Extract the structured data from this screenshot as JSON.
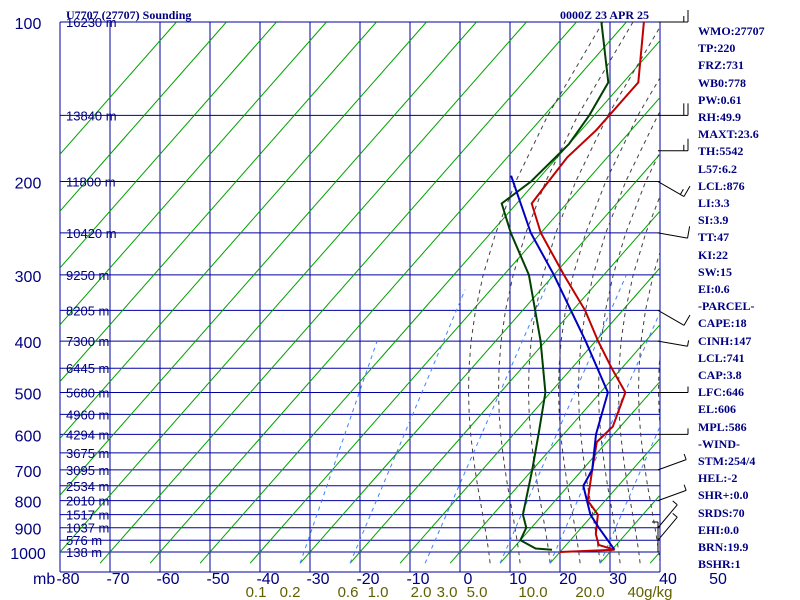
{
  "header": {
    "station": "U7707 (27707) Sounding",
    "time": "0000Z 23 APR 25"
  },
  "indices": [
    "WMO:27707",
    "TP:220",
    "FRZ:731",
    "WB0:778",
    "PW:0.61",
    "RH:49.9",
    "MAXT:23.6",
    "TH:5542",
    "L57:6.2",
    "LCL:876",
    "LI:3.3",
    "SI:3.9",
    "TT:47",
    "KI:22",
    "SW:15",
    "EI:0.6",
    "-PARCEL-",
    "CAPE:18",
    "CINH:147",
    "LCL:741",
    "CAP:3.8",
    "LFC:646",
    "EL:606",
    "MPL:586",
    "-WIND-",
    "STM:254/4",
    "HEL:-2",
    "SHR+:0.0",
    "SRDS:70",
    "EHI:0.0",
    "BRN:19.9",
    "BSHR:1"
  ],
  "colors": {
    "grid": "#0000a0",
    "labels": "#000080",
    "temperature": "#c00000",
    "dewpoint": "#004000",
    "parcel": "#0000c0",
    "dry_adiabat": "#00a000",
    "moist_adiabat": "#404040",
    "mixing_ratio": "#4080ff",
    "mixing_label": "#606000"
  },
  "chart_data": {
    "type": "line",
    "title": "U7707 (27707) Sounding",
    "xlabel": "",
    "ylabel": "mb",
    "x_tick_labels": [
      "-80",
      "-70",
      "-60",
      "-50",
      "-40",
      "-30",
      "-20",
      "-10",
      "0",
      "10",
      "20",
      "30",
      "40",
      "50"
    ],
    "y_tick_labels": [
      {
        "p": 100,
        "label": "100"
      },
      {
        "p": 200,
        "label": "200"
      },
      {
        "p": 300,
        "label": "300"
      },
      {
        "p": 400,
        "label": "400"
      },
      {
        "p": 500,
        "label": "500"
      },
      {
        "p": 600,
        "label": "600"
      },
      {
        "p": 700,
        "label": "700"
      },
      {
        "p": 800,
        "label": "800"
      },
      {
        "p": 900,
        "label": "900"
      },
      {
        "p": 1000,
        "label": "1000"
      }
    ],
    "ylim": [
      1050,
      100
    ],
    "xlim": [
      -80,
      50
    ],
    "y_scale": "log",
    "grid": true,
    "height_levels": [
      {
        "p": 100,
        "label": "16230 m"
      },
      {
        "p": 150,
        "label": "13840 m"
      },
      {
        "p": 200,
        "label": "11800 m"
      },
      {
        "p": 250,
        "label": "10420 m"
      },
      {
        "p": 300,
        "label": "9250 m"
      },
      {
        "p": 350,
        "label": "8205 m"
      },
      {
        "p": 400,
        "label": "7300 m"
      },
      {
        "p": 450,
        "label": "6445 m"
      },
      {
        "p": 500,
        "label": "5680 m"
      },
      {
        "p": 550,
        "label": "4960 m"
      },
      {
        "p": 600,
        "label": "4294 m"
      },
      {
        "p": 650,
        "label": "3675 m"
      },
      {
        "p": 700,
        "label": "3095 m"
      },
      {
        "p": 750,
        "label": "2534 m"
      },
      {
        "p": 800,
        "label": "2010 m"
      },
      {
        "p": 850,
        "label": "1517 m"
      },
      {
        "p": 900,
        "label": "1037 m"
      },
      {
        "p": 950,
        "label": "576 m"
      },
      {
        "p": 1000,
        "label": "138 m"
      }
    ],
    "mixing_ratio_labels": [
      "0.1",
      "0.2",
      "0.6",
      "1.0",
      "2.0",
      "3.0",
      "5.0",
      "10.0",
      "20.0",
      "40g/kg"
    ],
    "series": [
      {
        "key": "temperature",
        "points": [
          [
            1000,
            10.0
          ],
          [
            990,
            20.5
          ],
          [
            970,
            16.5
          ],
          [
            925,
            14.0
          ],
          [
            850,
            11.0
          ],
          [
            800,
            6.5
          ],
          [
            700,
            2.0
          ],
          [
            620,
            -2.0
          ],
          [
            580,
            -1.5
          ],
          [
            500,
            -5.0
          ],
          [
            450,
            -12.0
          ],
          [
            400,
            -19.5
          ],
          [
            350,
            -27.5
          ],
          [
            300,
            -38.0
          ],
          [
            250,
            -50.0
          ],
          [
            220,
            -57.0
          ],
          [
            200,
            -57.5
          ],
          [
            180,
            -58.0
          ],
          [
            160,
            -57.0
          ],
          [
            130,
            -57.0
          ],
          [
            100,
            -66.5
          ]
        ]
      },
      {
        "key": "dewpoint",
        "points": [
          [
            990,
            8.0
          ],
          [
            985,
            4.5
          ],
          [
            950,
            0.0
          ],
          [
            900,
            -1.0
          ],
          [
            850,
            -4.0
          ],
          [
            700,
            -10.0
          ],
          [
            600,
            -15.0
          ],
          [
            500,
            -21.0
          ],
          [
            400,
            -31.0
          ],
          [
            300,
            -45.0
          ],
          [
            250,
            -56.0
          ],
          [
            220,
            -63.0
          ],
          [
            200,
            -61.0
          ],
          [
            170,
            -60.0
          ],
          [
            150,
            -61.0
          ],
          [
            130,
            -63.0
          ],
          [
            100,
            -75.0
          ]
        ]
      },
      {
        "key": "parcel",
        "points": [
          [
            990,
            20.5
          ],
          [
            900,
            13.5
          ],
          [
            850,
            9.5
          ],
          [
            750,
            3.0
          ],
          [
            700,
            2.0
          ],
          [
            600,
            -3.5
          ],
          [
            500,
            -8.5
          ],
          [
            400,
            -22.0
          ],
          [
            300,
            -40.0
          ],
          [
            250,
            -52.0
          ],
          [
            195,
            -66.0
          ]
        ]
      }
    ],
    "wind_barbs": [
      {
        "p": 100,
        "dir": 270,
        "kt": 15
      },
      {
        "p": 150,
        "dir": 270,
        "kt": 20
      },
      {
        "p": 175,
        "dir": 270,
        "kt": 15
      },
      {
        "p": 200,
        "dir": 300,
        "kt": 15
      },
      {
        "p": 250,
        "dir": 280,
        "kt": 10
      },
      {
        "p": 350,
        "dir": 300,
        "kt": 10
      },
      {
        "p": 400,
        "dir": 280,
        "kt": 5
      },
      {
        "p": 500,
        "dir": 270,
        "kt": 5
      },
      {
        "p": 600,
        "dir": 270,
        "kt": 5
      },
      {
        "p": 700,
        "dir": 250,
        "kt": 5
      },
      {
        "p": 800,
        "dir": 250,
        "kt": 5
      },
      {
        "p": 900,
        "dir": 220,
        "kt": 5
      },
      {
        "p": 950,
        "dir": 220,
        "kt": 5
      },
      {
        "p": 1000,
        "dir": 180,
        "kt": 5
      }
    ]
  }
}
